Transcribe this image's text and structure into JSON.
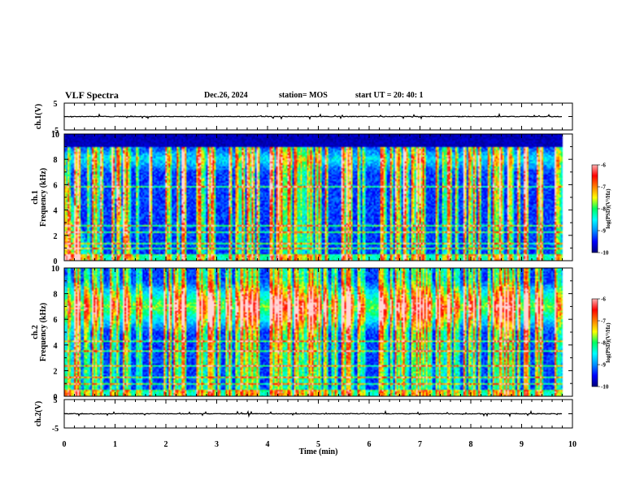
{
  "header": {
    "title": "VLF Spectra",
    "date": "Dec.26, 2024",
    "station": "station= MOS",
    "start_ut": "start  UT  =   20: 40: 1"
  },
  "axes": {
    "ch1_waveform": {
      "ylabel": "ch.1(V)",
      "ytick_labels": [
        "5",
        "-5"
      ],
      "ylim": [
        -5,
        5
      ]
    },
    "ch1_spectrogram": {
      "ylabel_line1": "ch.1",
      "ylabel_line2": "Frequency (kHz)",
      "ytick_labels": [
        "0",
        "2",
        "4",
        "6",
        "8",
        "10"
      ],
      "ylim": [
        0,
        10
      ]
    },
    "ch2_spectrogram": {
      "ylabel_line1": "ch.2",
      "ylabel_line2": "Frequency (kHz)",
      "ytick_labels": [
        "0",
        "2",
        "4",
        "6",
        "8",
        "10"
      ],
      "ylim": [
        0,
        10
      ]
    },
    "ch2_waveform": {
      "ylabel": "ch.2(V)",
      "ytick_labels": [
        "5",
        "-5"
      ],
      "ylim": [
        -5,
        5
      ]
    },
    "time": {
      "xlabel": "Time  (min)",
      "xtick_labels": [
        "0",
        "1",
        "2",
        "3",
        "4",
        "5",
        "6",
        "7",
        "8",
        "9",
        "10"
      ],
      "xlim": [
        0,
        10
      ]
    }
  },
  "colorbar": {
    "label": "log(PSD)(V²/Hz)",
    "tick_labels": [
      "-6",
      "-7",
      "-8",
      "-9",
      "-10"
    ],
    "range": [
      -10,
      -6
    ],
    "colors": [
      "#00007a",
      "#0000ff",
      "#0090ff",
      "#00ffff",
      "#00ff60",
      "#ffff00",
      "#ff7f00",
      "#ff0000",
      "#ffffff"
    ]
  },
  "chart_data": {
    "type": "heatmap",
    "title": "VLF Spectra",
    "xlabel": "Time  (min)",
    "xlim": [
      0,
      10
    ],
    "data_end_min": 9.8,
    "panels": [
      {
        "name": "ch.1",
        "ylabel": "Frequency (kHz)",
        "ylim": [
          0,
          10
        ],
        "zlim": [
          -10,
          -6
        ],
        "features": {
          "band_top_khz": 9.0,
          "dispersion_start_min": 0.0,
          "dispersion_end_min": 0.6,
          "line_freqs_khz": [
            0.5,
            1.0,
            1.3,
            2.3,
            2.8,
            5.8
          ],
          "hot_band_khz": [
            7.0,
            9.0
          ]
        }
      },
      {
        "name": "ch.2",
        "ylabel": "Frequency (kHz)",
        "ylim": [
          0,
          10
        ],
        "zlim": [
          -10,
          -6
        ],
        "features": {
          "band_top_khz": 10.0,
          "hot_band_khz": [
            5.0,
            9.0
          ],
          "hot_center_khz": 7.2,
          "line_freqs_khz": [
            0.5,
            1.0,
            1.5,
            2.4,
            3.5,
            4.3
          ]
        }
      }
    ]
  }
}
